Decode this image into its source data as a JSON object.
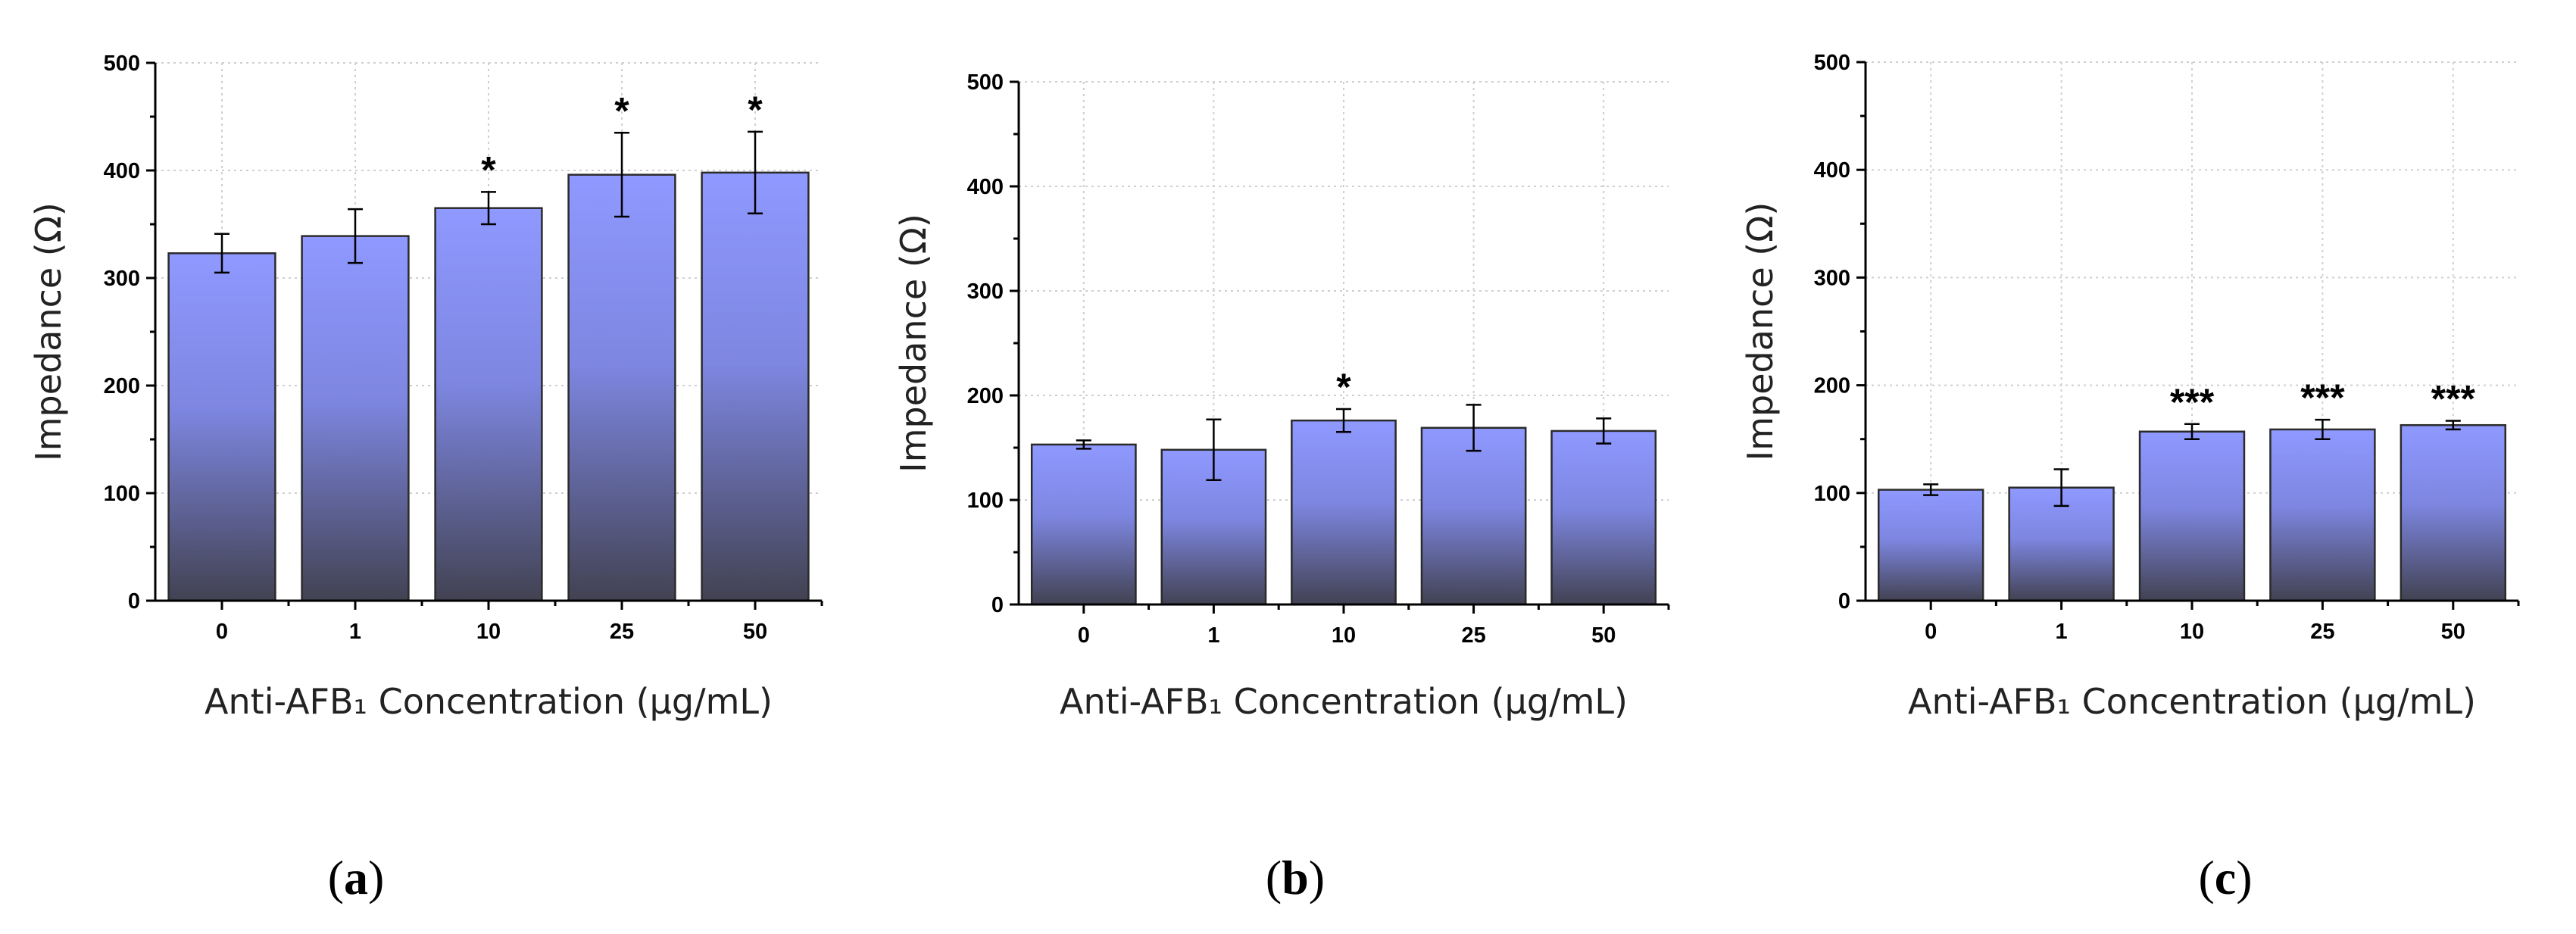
{
  "colors": {
    "bar_top": "#8f99ff",
    "bar_bottom": "#424252",
    "grid": "#cfcfcf"
  },
  "chart_data": [
    {
      "type": "bar",
      "panel_label": "a",
      "categories": [
        "0",
        "1",
        "10",
        "25",
        "50"
      ],
      "values": [
        323,
        339,
        365,
        396,
        398
      ],
      "errors": [
        18,
        25,
        15,
        39,
        38
      ],
      "significance": [
        "",
        "",
        "*",
        "*",
        "*"
      ],
      "ylabel": "Impedance (Ω)",
      "xlabel": "Anti-AFB₁ Concentration (µg/mL)",
      "ylim": [
        0,
        500
      ],
      "yticks": [
        "0",
        "100",
        "200",
        "300",
        "400",
        "500"
      ],
      "grid": true
    },
    {
      "type": "bar",
      "panel_label": "b",
      "categories": [
        "0",
        "1",
        "10",
        "25",
        "50"
      ],
      "values": [
        153,
        148,
        176,
        169,
        166
      ],
      "errors": [
        4,
        29,
        11,
        22,
        12
      ],
      "significance": [
        "",
        "",
        "*",
        "",
        ""
      ],
      "ylabel": "Impedance (Ω)",
      "xlabel": "Anti-AFB₁ Concentration (µg/mL)",
      "ylim": [
        0,
        500
      ],
      "yticks": [
        "0",
        "100",
        "200",
        "300",
        "400",
        "500"
      ],
      "grid": true
    },
    {
      "type": "bar",
      "panel_label": "c",
      "categories": [
        "0",
        "1",
        "10",
        "25",
        "50"
      ],
      "values": [
        103,
        105,
        157,
        159,
        163
      ],
      "errors": [
        5,
        17,
        7,
        9,
        4
      ],
      "significance": [
        "",
        "",
        "***",
        "***",
        "***"
      ],
      "ylabel": "Impedance (Ω)",
      "xlabel": "Anti-AFB₁ Concentration (µg/mL)",
      "ylim": [
        0,
        500
      ],
      "yticks": [
        "0",
        "100",
        "200",
        "300",
        "400",
        "500"
      ],
      "grid": true
    }
  ]
}
